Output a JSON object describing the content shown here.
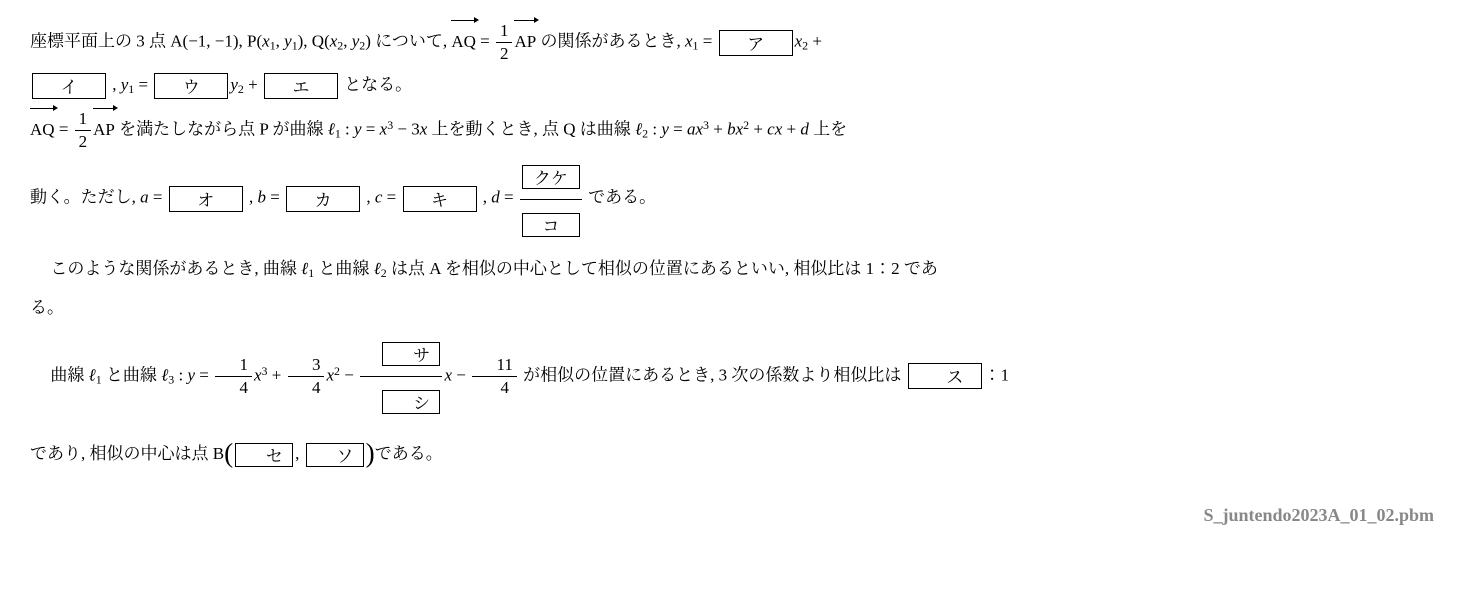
{
  "line1": {
    "t1": "座標平面上の 3 点 A(−1,  −1),  P(",
    "x1": "x",
    "sub1": "1",
    "comma1": ",  ",
    "y1": "y",
    "suby1": "1",
    "t2": "),  Q(",
    "x2": "x",
    "sub2": "2",
    "comma2": ",  ",
    "y2": "y",
    "suby2": "2",
    "t3": ") について,  ",
    "vecAQ": "AQ",
    "eq1": " = ",
    "frac1_num": "1",
    "frac1_den": "2",
    "vecAP": "AP",
    "t4": " の関係があるとき,  ",
    "x1eq": "x",
    "x1eq_sub": "1",
    "eq2": " = ",
    "box_a": "ア",
    "x2term": "x",
    "x2term_sub": "2",
    "plus1": " +"
  },
  "line2": {
    "box_i": "イ",
    "comma": " ,  ",
    "y1": "y",
    "y1sub": "1",
    "eq": " = ",
    "box_u": "ウ",
    "y2": "y",
    "y2sub": "2",
    "plus": " + ",
    "box_e": "エ",
    "t_end": " となる。"
  },
  "line3": {
    "vecAQ": "AQ",
    "eq": " = ",
    "frac_num": "1",
    "frac_den": "2",
    "vecAP": "AP",
    "t1": " を満たしながら点 P が曲線 ",
    "ell1": "ℓ",
    "ell1sub": "1",
    "t2": " : ",
    "y": "y",
    "eq2": " = ",
    "x3": "x",
    "sup3": "3",
    "minus": " − 3",
    "x": "x",
    "t3": " 上を動くとき,  点 Q は曲線 ",
    "ell2": "ℓ",
    "ell2sub": "2",
    "t4": " : ",
    "y2": "y",
    "eq3": " = ",
    "a": "a",
    "xa": "x",
    "supa": "3",
    "plus1": " + ",
    "b": "b",
    "xb": "x",
    "supb": "2",
    "plus2": " + ",
    "c": "c",
    "xc": "x",
    "plus3": " + ",
    "d": "d",
    "t5": " 上を"
  },
  "line4": {
    "t1": "動く。ただし,  ",
    "a": "a",
    "eq_a": " = ",
    "box_o": "オ",
    "comma1": " ,  ",
    "b": "b",
    "eq_b": " = ",
    "box_ka": "カ",
    "comma2": " ,  ",
    "c": "c",
    "eq_c": " = ",
    "box_ki": "キ",
    "comma3": " ,  ",
    "d": "d",
    "eq_d": " = ",
    "box_kuke": "クケ",
    "box_ko": "コ",
    "t2": " である。"
  },
  "line5": {
    "t1": "このような関係があるとき,  曲線 ",
    "ell1": "ℓ",
    "ell1sub": "1",
    "t2": " と曲線 ",
    "ell2": "ℓ",
    "ell2sub": "2",
    "t3": " は点 A を相似の中心として相似の位置にあるといい,  相似比は 1：2 であ"
  },
  "line6": {
    "t": "る。"
  },
  "line7": {
    "t1": "曲線 ",
    "ell1": "ℓ",
    "ell1sub": "1",
    "t2": " と曲線 ",
    "ell3": "ℓ",
    "ell3sub": "3",
    "t3": " : ",
    "y": "y",
    "eq": " = ",
    "f1n": "1",
    "f1d": "4",
    "x3": "x",
    "sup3": "3",
    "plus1": " + ",
    "f2n": "3",
    "f2d": "4",
    "x2": "x",
    "sup2": "2",
    "minus1": " − ",
    "box_sa": "サ",
    "box_shi": "シ",
    "x": "x",
    "minus2": " − ",
    "f3n": "11",
    "f3d": "4",
    "t4": " が相似の位置にあるとき, 3 次の係数より相似比は ",
    "box_su": "ス",
    "t5": "：1"
  },
  "line8": {
    "t1": "であり,  相似の中心は点 B",
    "box_se": "セ",
    "comma": ",  ",
    "box_so": "ソ",
    "t2": "である。"
  },
  "source": "S_juntendo2023A_01_02.pbm"
}
